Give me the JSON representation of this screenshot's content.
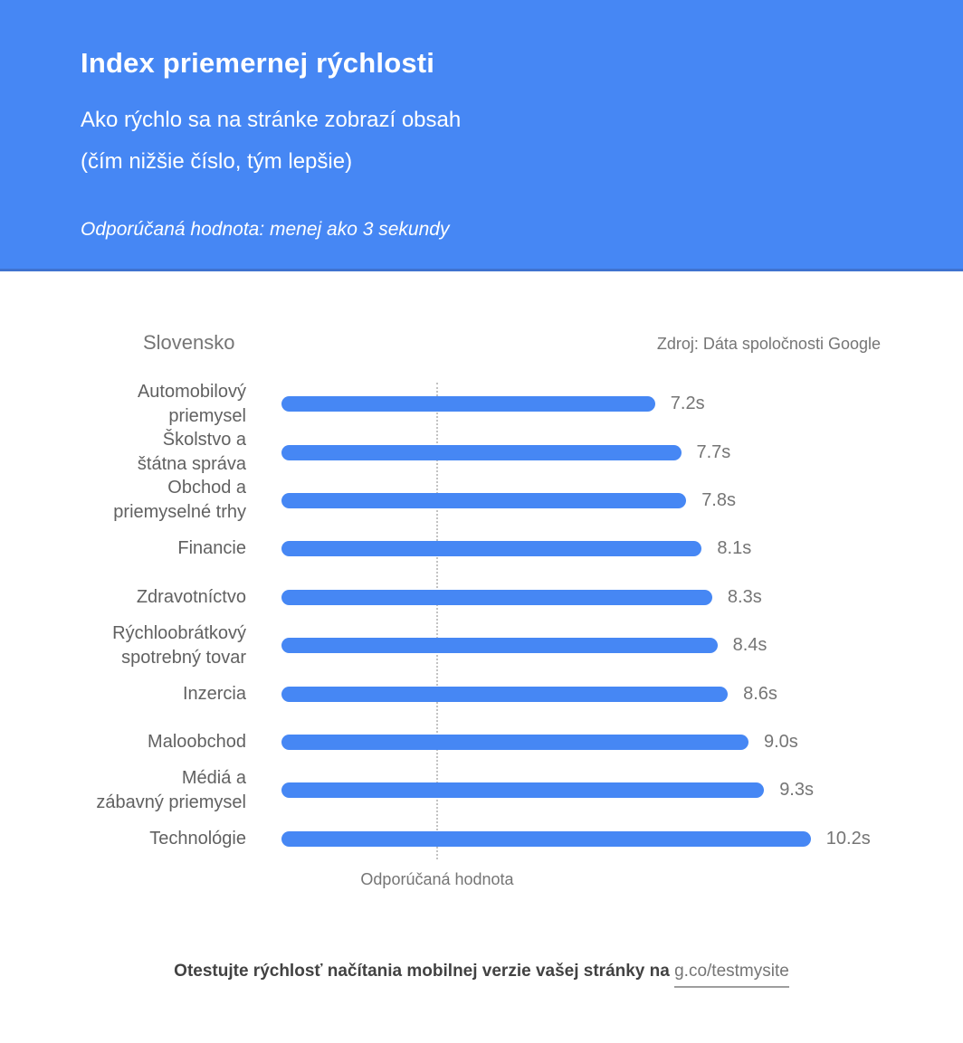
{
  "header": {
    "title": "Index priemernej rýchlosti",
    "subtitle_line1": "Ako rýchlo sa na stránke zobrazí obsah",
    "subtitle_line2": "(čím nižšie číslo, tým lepšie)",
    "note": "Odporúčaná hodnota: menej ako 3 sekundy"
  },
  "chart_header": {
    "country": "Slovensko",
    "source": "Zdroj: Dáta spoločnosti Google"
  },
  "chart_data": {
    "type": "bar",
    "orientation": "horizontal",
    "title": "Index priemernej rýchlosti",
    "categories": [
      [
        "Automobilový",
        "priemysel"
      ],
      [
        "Školstvo a",
        "štátna správa"
      ],
      [
        "Obchod a",
        "priemyselné trhy"
      ],
      [
        "Financie"
      ],
      [
        "Zdravotníctvo"
      ],
      [
        "Rýchloobrátkový",
        "spotrebný tovar"
      ],
      [
        "Inzercia"
      ],
      [
        "Maloobchod"
      ],
      [
        "Médiá a",
        "zábavný priemysel"
      ],
      [
        "Technológie"
      ]
    ],
    "values": [
      7.2,
      7.7,
      7.8,
      8.1,
      8.3,
      8.4,
      8.6,
      9.0,
      9.3,
      10.2
    ],
    "value_labels": [
      "7.2s",
      "7.7s",
      "7.8s",
      "8.1s",
      "8.3s",
      "8.4s",
      "8.6s",
      "9.0s",
      "9.3s",
      "10.2s"
    ],
    "unit": "s",
    "recommended_value": 3,
    "reference_line_label": "Odporúčaná hodnota",
    "xlim": [
      0,
      10.5
    ],
    "grid": false,
    "legend": "none",
    "bar_color": "#4687f4"
  },
  "footer": {
    "text": "Otestujte rýchlosť načítania mobilnej verzie vašej stránky na",
    "link_text": "g.co/testmysite"
  },
  "colors": {
    "header_bg": "#4687f4",
    "bar": "#4687f4",
    "text_muted": "#757575",
    "text_dark": "#424242",
    "reference_line": "#c3c3c3"
  }
}
